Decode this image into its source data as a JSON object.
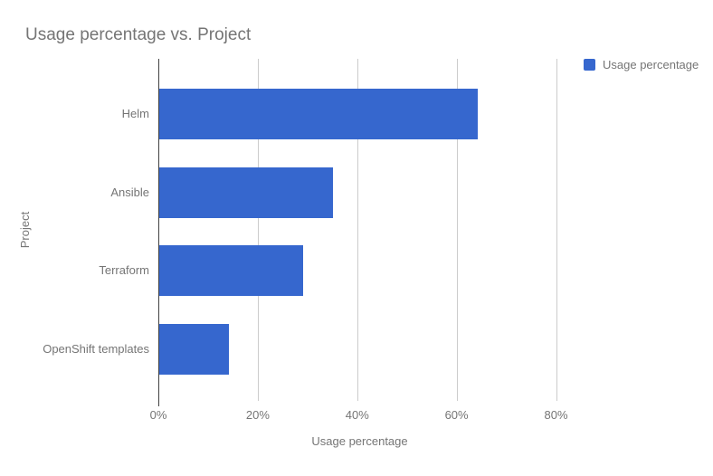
{
  "title": "Usage percentage vs. Project",
  "legend": {
    "label": "Usage percentage"
  },
  "axes": {
    "x_title": "Usage percentage",
    "y_title": "Project"
  },
  "colors": {
    "bar": "#3667CE",
    "grid": "#CCCCCC",
    "axis_line": "#424242",
    "text_muted": "#757575",
    "background": "#FFFFFF"
  },
  "chart_data": {
    "type": "bar",
    "orientation": "horizontal",
    "title": "Usage percentage vs. Project",
    "categories": [
      "Helm",
      "Ansible",
      "Terraform",
      "OpenShift templates"
    ],
    "values": [
      64,
      35,
      29,
      14
    ],
    "unit": "%",
    "series": [
      {
        "name": "Usage percentage",
        "values": [
          64,
          35,
          29,
          14
        ]
      }
    ],
    "xlabel": "Usage percentage",
    "ylabel": "Project",
    "xlim": [
      0,
      81
    ],
    "xticks": [
      0,
      20,
      40,
      60,
      80
    ],
    "xtick_labels": [
      "0%",
      "20%",
      "40%",
      "60%",
      "80%"
    ],
    "grid": true,
    "legend_position": "top-right",
    "bar_color": "#3667CE"
  }
}
